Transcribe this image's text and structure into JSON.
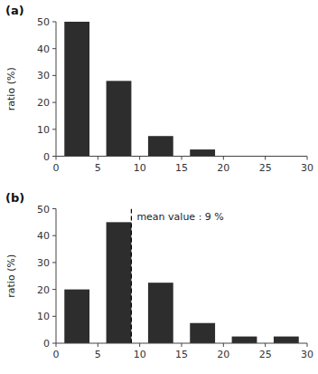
{
  "chart_data": [
    {
      "type": "bar",
      "title": "(a)",
      "y_label": "ratio (%)",
      "x": [
        2.5,
        7.5,
        12.5,
        17.5,
        22.5,
        27.5
      ],
      "values": [
        50,
        28,
        7.5,
        2.5,
        0,
        0
      ],
      "color": "#2d2d2d",
      "xlim": [
        0,
        30
      ],
      "ylim": [
        0,
        50
      ],
      "xticks": [
        0,
        5,
        10,
        15,
        20,
        25,
        30
      ],
      "yticks": [
        0,
        10,
        20,
        30,
        40,
        50
      ],
      "grid": false
    },
    {
      "type": "bar",
      "title": "(b)",
      "y_label": "ratio (%)",
      "x": [
        2.5,
        7.5,
        12.5,
        17.5,
        22.5,
        27.5
      ],
      "values": [
        20,
        45,
        22.5,
        7.5,
        2.5,
        2.5
      ],
      "color": "#2d2d2d",
      "xlim": [
        0,
        30
      ],
      "ylim": [
        0,
        50
      ],
      "xticks": [
        0,
        5,
        10,
        15,
        20,
        25,
        30
      ],
      "yticks": [
        0,
        10,
        20,
        30,
        40,
        50
      ],
      "grid": false,
      "reference_line": {
        "x": 9,
        "label": "mean value : 9 %"
      }
    }
  ]
}
